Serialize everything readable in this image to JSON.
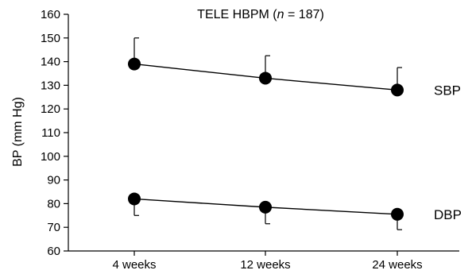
{
  "chart_data": {
    "type": "line",
    "title": "TELE HBPM",
    "title_n_symbol": "n",
    "title_n_value": "= 187",
    "ylabel": "BP (mm Hg)",
    "xlabel": "",
    "categories": [
      "4 weeks",
      "12 weeks",
      "24 weeks"
    ],
    "ylim": [
      60,
      160
    ],
    "yticks": [
      60,
      70,
      80,
      90,
      100,
      110,
      120,
      130,
      140,
      150,
      160
    ],
    "grid": false,
    "series": [
      {
        "name": "SBP",
        "values": [
          139,
          133,
          128
        ],
        "error_upper": [
          150,
          142.5,
          137.5
        ],
        "error_direction": "up"
      },
      {
        "name": "DBP",
        "values": [
          82,
          78.5,
          75.5
        ],
        "error_lower": [
          75,
          71.5,
          69
        ],
        "error_direction": "down"
      }
    ]
  }
}
